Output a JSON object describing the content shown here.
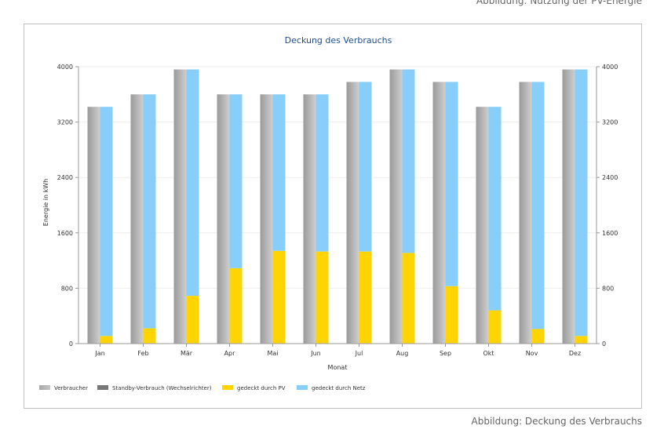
{
  "captions": {
    "top": "Abbildung: Nutzung der PV-Energie",
    "bottom": "Abbildung: Deckung des Verbrauchs"
  },
  "colors": {
    "verbraucher_dark": "#9a9a9a",
    "verbraucher_light": "#cfcfcf",
    "standby": "#777777",
    "pv": "#ffd400",
    "netz": "#87cefa",
    "title": "#1f4e8c",
    "grid": "#eeeeee"
  },
  "chart_data": {
    "type": "bar",
    "title": "Deckung des Verbrauchs",
    "xlabel": "Monat",
    "ylabel": "Energie in kWh",
    "ylim": [
      0,
      4000
    ],
    "yticks": [
      0,
      800,
      1600,
      2400,
      3200,
      4000
    ],
    "y_tick_labels": [
      "0",
      "800",
      "1600",
      "2400",
      "3200",
      "4000"
    ],
    "categories": [
      "Jan",
      "Feb",
      "Mär",
      "Apr",
      "Mai",
      "Jun",
      "Jul",
      "Aug",
      "Sep",
      "Okt",
      "Nov",
      "Dez"
    ],
    "series": [
      {
        "name": "Verbraucher",
        "stack": "verbrauch",
        "values": [
          3420,
          3600,
          3960,
          3600,
          3600,
          3600,
          3780,
          3960,
          3780,
          3420,
          3780,
          3960
        ]
      },
      {
        "name": "Standby-Verbrauch (Wechselrichter)",
        "stack": "verbrauch",
        "values": [
          0,
          0,
          0,
          0,
          0,
          0,
          0,
          0,
          0,
          0,
          0,
          0
        ]
      },
      {
        "name": "gedeckt durch PV",
        "stack": "deckung",
        "values": [
          110,
          220,
          690,
          1090,
          1340,
          1330,
          1330,
          1310,
          830,
          480,
          210,
          110
        ]
      },
      {
        "name": "gedeckt durch Netz",
        "stack": "deckung",
        "values": [
          3310,
          3380,
          3270,
          2510,
          2260,
          2270,
          2450,
          2650,
          2950,
          2940,
          3570,
          3850
        ]
      }
    ],
    "legend_position": "bottom-left"
  }
}
